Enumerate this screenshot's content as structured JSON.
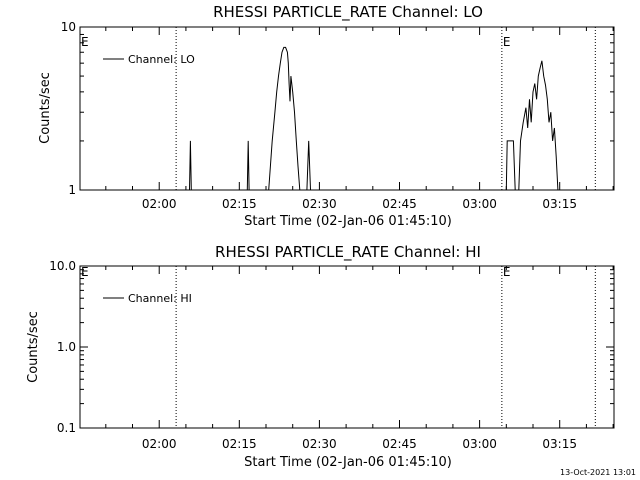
{
  "footer": {
    "stamp": "13-Oct-2021 13:01"
  },
  "chart_data": [
    {
      "type": "line",
      "title": "RHESSI PARTICLE_RATE Channel: LO",
      "xlabel": "Start Time (02-Jan-06 01:45:10)",
      "ylabel": "Counts/sec",
      "yscale": "log",
      "ylim": [
        1,
        10
      ],
      "xlim": [
        "01:45:10",
        "03:25:10"
      ],
      "x_ticks": [
        "02:00",
        "02:15",
        "02:30",
        "02:45",
        "03:00",
        "03:15"
      ],
      "y_ticks": [
        "1",
        "10"
      ],
      "grid": false,
      "legend_position": "top-left",
      "series": [
        {
          "name": "Channel: LO",
          "color": "#000000",
          "points": [
            [
              "02:05:40",
              1
            ],
            [
              "02:05:50",
              2
            ],
            [
              "02:06:00",
              1
            ],
            [
              "02:16:30",
              1
            ],
            [
              "02:16:40",
              2
            ],
            [
              "02:16:50",
              1
            ],
            [
              "02:20:30",
              1
            ],
            [
              "02:21:10",
              2
            ],
            [
              "02:21:40",
              3
            ],
            [
              "02:22:00",
              4
            ],
            [
              "02:22:20",
              5
            ],
            [
              "02:22:40",
              6
            ],
            [
              "02:23:00",
              7
            ],
            [
              "02:23:20",
              7.5
            ],
            [
              "02:23:40",
              7.5
            ],
            [
              "02:24:00",
              7
            ],
            [
              "02:24:10",
              6
            ],
            [
              "02:24:20",
              4.5
            ],
            [
              "02:24:30",
              3.5
            ],
            [
              "02:24:40",
              5
            ],
            [
              "02:25:00",
              4
            ],
            [
              "02:25:20",
              3
            ],
            [
              "02:25:40",
              2
            ],
            [
              "02:26:00",
              1.4
            ],
            [
              "02:26:20",
              1
            ],
            [
              "02:27:40",
              1
            ],
            [
              "02:28:00",
              2
            ],
            [
              "02:28:20",
              1
            ],
            [
              "03:05:00",
              1
            ],
            [
              "03:05:10",
              2
            ],
            [
              "03:06:20",
              2
            ],
            [
              "03:06:40",
              1
            ],
            [
              "03:07:20",
              1
            ],
            [
              "03:07:40",
              2
            ],
            [
              "03:08:10",
              2.6
            ],
            [
              "03:08:40",
              3.2
            ],
            [
              "03:09:00",
              2.4
            ],
            [
              "03:09:20",
              3.6
            ],
            [
              "03:09:40",
              2.6
            ],
            [
              "03:10:00",
              4
            ],
            [
              "03:10:20",
              4.5
            ],
            [
              "03:10:40",
              3.6
            ],
            [
              "03:11:00",
              5
            ],
            [
              "03:11:20",
              5.6
            ],
            [
              "03:11:40",
              6.2
            ],
            [
              "03:12:00",
              5
            ],
            [
              "03:12:20",
              4.4
            ],
            [
              "03:12:40",
              3.6
            ],
            [
              "03:13:00",
              2.6
            ],
            [
              "03:13:20",
              3
            ],
            [
              "03:13:40",
              2
            ],
            [
              "03:14:00",
              2.4
            ],
            [
              "03:14:20",
              1.6
            ],
            [
              "03:14:40",
              1
            ]
          ]
        }
      ],
      "markers": [
        {
          "time": "02:03:10",
          "style": "dotted"
        },
        {
          "time": "03:04:10",
          "style": "dotted"
        },
        {
          "time": "03:21:40",
          "style": "dotted"
        }
      ],
      "annotations": [
        {
          "text": "E",
          "time": "01:45:10"
        },
        {
          "text": "E",
          "time": "03:04:10"
        }
      ]
    },
    {
      "type": "line",
      "title": "RHESSI PARTICLE_RATE Channel: HI",
      "xlabel": "Start Time (02-Jan-06 01:45:10)",
      "ylabel": "Counts/sec",
      "yscale": "log",
      "ylim": [
        0.1,
        10
      ],
      "xlim": [
        "01:45:10",
        "03:25:10"
      ],
      "x_ticks": [
        "02:00",
        "02:15",
        "02:30",
        "02:45",
        "03:00",
        "03:15"
      ],
      "y_ticks": [
        "0.1",
        "1.0",
        "10.0"
      ],
      "grid": false,
      "legend_position": "top-left",
      "series": [
        {
          "name": "Channel: HI",
          "color": "#000000",
          "points": []
        }
      ],
      "markers": [
        {
          "time": "02:03:10",
          "style": "dotted"
        },
        {
          "time": "03:04:10",
          "style": "dotted"
        },
        {
          "time": "03:21:40",
          "style": "dotted"
        }
      ],
      "annotations": [
        {
          "text": "E",
          "time": "01:45:10"
        },
        {
          "text": "E",
          "time": "03:04:10"
        }
      ]
    }
  ]
}
